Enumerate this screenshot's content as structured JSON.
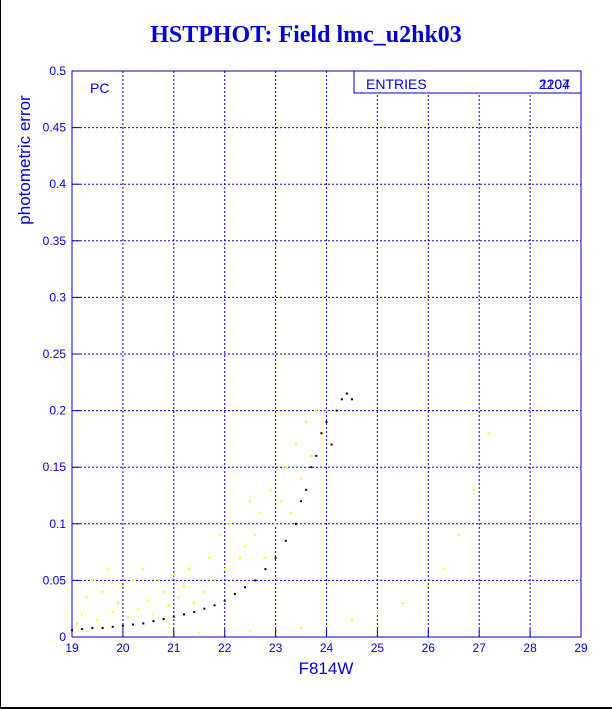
{
  "chart_data": {
    "type": "scatter",
    "title": "HSTPHOT: Field lmc_u2hk03",
    "xlabel": "F814W",
    "ylabel": "photometric error",
    "xlim": [
      19,
      29
    ],
    "ylim": [
      0,
      0.5
    ],
    "x_ticks": [
      "19",
      "20",
      "21",
      "22",
      "23",
      "24",
      "25",
      "26",
      "27",
      "28",
      "29"
    ],
    "y_ticks": [
      "0",
      "0.05",
      "0.1",
      "0.15",
      "0.2",
      "0.25",
      "0.3",
      "0.35",
      "0.4",
      "0.45",
      "0.5"
    ],
    "grid": true,
    "panel_label": "PC",
    "stats_box": {
      "label": "ENTRIES",
      "value": "2204",
      "overlay_value": "1107"
    },
    "legend_position": "top-right",
    "series": [
      {
        "color": "#ffff00",
        "points": [
          [
            19.1,
            0.012
          ],
          [
            19.2,
            0.02
          ],
          [
            19.3,
            0.035
          ],
          [
            19.4,
            0.05
          ],
          [
            19.5,
            0.015
          ],
          [
            19.6,
            0.04
          ],
          [
            19.7,
            0.06
          ],
          [
            19.8,
            0.022
          ],
          [
            19.9,
            0.03
          ],
          [
            20.0,
            0.045
          ],
          [
            20.1,
            0.018
          ],
          [
            20.2,
            0.05
          ],
          [
            20.3,
            0.025
          ],
          [
            20.4,
            0.06
          ],
          [
            20.5,
            0.032
          ],
          [
            20.6,
            0.02
          ],
          [
            20.7,
            0.05
          ],
          [
            20.8,
            0.04
          ],
          [
            20.9,
            0.028
          ],
          [
            21.0,
            0.055
          ],
          [
            21.1,
            0.035
          ],
          [
            21.2,
            0.045
          ],
          [
            21.3,
            0.06
          ],
          [
            21.4,
            0.03
          ],
          [
            21.5,
            0.05
          ],
          [
            21.6,
            0.04
          ],
          [
            21.7,
            0.07
          ],
          [
            21.8,
            0.05
          ],
          [
            21.9,
            0.09
          ],
          [
            22.0,
            0.06
          ],
          [
            22.1,
            0.1
          ],
          [
            22.2,
            0.05
          ],
          [
            22.3,
            0.07
          ],
          [
            22.4,
            0.08
          ],
          [
            22.5,
            0.12
          ],
          [
            22.6,
            0.09
          ],
          [
            22.7,
            0.11
          ],
          [
            22.8,
            0.07
          ],
          [
            22.9,
            0.13
          ],
          [
            23.0,
            0.1
          ],
          [
            23.1,
            0.12
          ],
          [
            23.2,
            0.15
          ],
          [
            23.3,
            0.11
          ],
          [
            23.4,
            0.17
          ],
          [
            23.5,
            0.14
          ],
          [
            23.6,
            0.19
          ],
          [
            23.7,
            0.16
          ],
          [
            23.8,
            0.2
          ],
          [
            23.9,
            0.18
          ],
          [
            24.0,
            0.2
          ],
          [
            19.3,
            0.005
          ],
          [
            19.6,
            0.009
          ],
          [
            20.0,
            0.01
          ],
          [
            20.4,
            0.012
          ],
          [
            20.8,
            0.015
          ],
          [
            21.0,
            0.003
          ],
          [
            21.5,
            0.003
          ],
          [
            22.0,
            0.004
          ],
          [
            22.5,
            0.005
          ],
          [
            23.0,
            0.006
          ],
          [
            23.5,
            0.008
          ],
          [
            24.0,
            0.01
          ],
          [
            24.5,
            0.015
          ],
          [
            25.0,
            0.022
          ],
          [
            25.5,
            0.03
          ],
          [
            26.0,
            0.045
          ],
          [
            26.3,
            0.06
          ],
          [
            26.6,
            0.09
          ],
          [
            26.9,
            0.13
          ],
          [
            27.2,
            0.18
          ]
        ]
      },
      {
        "color": "#000000",
        "points": [
          [
            19.0,
            0.006
          ],
          [
            19.2,
            0.007
          ],
          [
            19.4,
            0.008
          ],
          [
            19.6,
            0.008
          ],
          [
            19.8,
            0.009
          ],
          [
            20.0,
            0.01
          ],
          [
            20.2,
            0.011
          ],
          [
            20.4,
            0.012
          ],
          [
            20.6,
            0.014
          ],
          [
            20.8,
            0.016
          ],
          [
            21.0,
            0.018
          ],
          [
            21.2,
            0.02
          ],
          [
            21.4,
            0.022
          ],
          [
            21.6,
            0.025
          ],
          [
            21.8,
            0.028
          ],
          [
            22.0,
            0.032
          ],
          [
            22.2,
            0.038
          ],
          [
            22.4,
            0.044
          ],
          [
            22.6,
            0.05
          ],
          [
            22.8,
            0.06
          ],
          [
            23.0,
            0.07
          ],
          [
            23.2,
            0.085
          ],
          [
            23.4,
            0.1
          ],
          [
            23.5,
            0.12
          ],
          [
            23.6,
            0.13
          ],
          [
            23.7,
            0.15
          ],
          [
            23.8,
            0.16
          ],
          [
            23.9,
            0.18
          ],
          [
            24.0,
            0.19
          ],
          [
            24.1,
            0.17
          ],
          [
            24.2,
            0.2
          ],
          [
            24.3,
            0.21
          ],
          [
            24.4,
            0.215
          ],
          [
            24.5,
            0.21
          ]
        ]
      }
    ]
  }
}
